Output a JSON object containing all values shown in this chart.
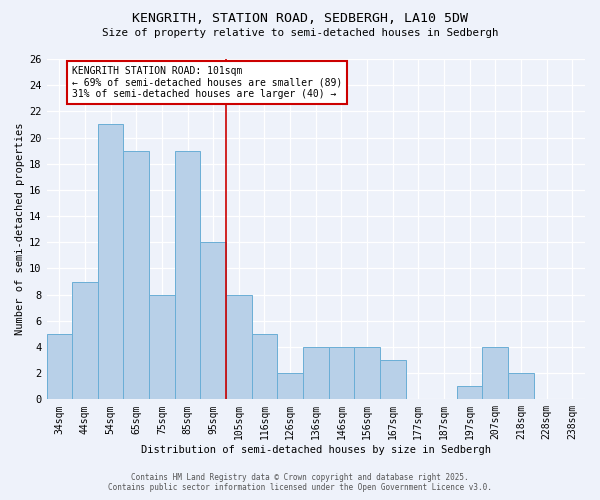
{
  "title": "KENGRITH, STATION ROAD, SEDBERGH, LA10 5DW",
  "subtitle": "Size of property relative to semi-detached houses in Sedbergh",
  "xlabel": "Distribution of semi-detached houses by size in Sedbergh",
  "ylabel": "Number of semi-detached properties",
  "categories": [
    "34sqm",
    "44sqm",
    "54sqm",
    "65sqm",
    "75sqm",
    "85sqm",
    "95sqm",
    "105sqm",
    "116sqm",
    "126sqm",
    "136sqm",
    "146sqm",
    "156sqm",
    "167sqm",
    "177sqm",
    "187sqm",
    "197sqm",
    "207sqm",
    "218sqm",
    "228sqm",
    "238sqm"
  ],
  "values": [
    5,
    9,
    21,
    19,
    8,
    19,
    12,
    8,
    5,
    2,
    4,
    4,
    4,
    3,
    0,
    0,
    1,
    4,
    2,
    0,
    0
  ],
  "bar_color": "#b8d0e8",
  "bar_edgecolor": "#6aaed6",
  "background_color": "#eef2fa",
  "grid_color": "#ffffff",
  "annotation_text_line1": "KENGRITH STATION ROAD: 101sqm",
  "annotation_text_line2": "← 69% of semi-detached houses are smaller (89)",
  "annotation_text_line3": "31% of semi-detached houses are larger (40) →",
  "annotation_box_facecolor": "#ffffff",
  "annotation_box_edgecolor": "#cc0000",
  "vline_color": "#cc0000",
  "vline_position": 6.5,
  "ylim": [
    0,
    26
  ],
  "yticks": [
    0,
    2,
    4,
    6,
    8,
    10,
    12,
    14,
    16,
    18,
    20,
    22,
    24,
    26
  ],
  "footer_line1": "Contains HM Land Registry data © Crown copyright and database right 2025.",
  "footer_line2": "Contains public sector information licensed under the Open Government Licence v3.0."
}
